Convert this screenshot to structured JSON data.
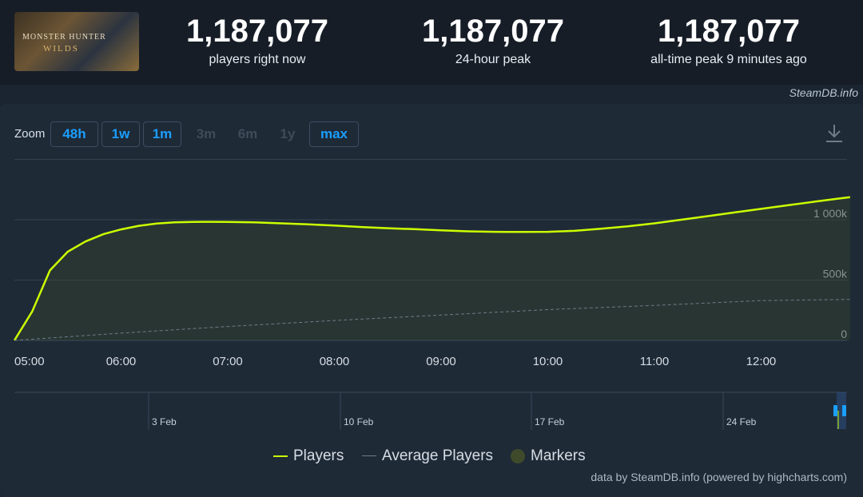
{
  "header": {
    "game_logo_text_line1": "MONSTER HUNTER",
    "game_logo_text_line2": "WILDS",
    "stats": [
      {
        "value": "1,187,077",
        "label": "players right now"
      },
      {
        "value": "1,187,077",
        "label": "24-hour peak"
      },
      {
        "value": "1,187,077",
        "label": "all-time peak 9 minutes ago"
      }
    ],
    "brand": "SteamDB.info"
  },
  "zoom": {
    "label": "Zoom",
    "buttons": [
      {
        "label": "48h",
        "enabled": true
      },
      {
        "label": "1w",
        "enabled": true
      },
      {
        "label": "1m",
        "enabled": true
      },
      {
        "label": "3m",
        "enabled": false
      },
      {
        "label": "6m",
        "enabled": false
      },
      {
        "label": "1y",
        "enabled": false
      },
      {
        "label": "max",
        "enabled": true
      }
    ]
  },
  "colors": {
    "players": "#ccff00",
    "average": "#6f7b88",
    "markers": "#3f4a2a",
    "grid": "#334152",
    "accent": "#1a9fff"
  },
  "chart_data": {
    "type": "line",
    "x_ticks": [
      "05:00",
      "06:00",
      "07:00",
      "08:00",
      "09:00",
      "10:00",
      "11:00",
      "12:00"
    ],
    "y_ticks": [
      "0",
      "500k",
      "1 000k"
    ],
    "ylim": [
      0,
      1500000
    ],
    "grid": true,
    "legend_position": "bottom",
    "series": [
      {
        "name": "Players",
        "x": [
          "05:00",
          "05:10",
          "05:20",
          "05:30",
          "05:40",
          "05:50",
          "06:00",
          "06:10",
          "06:20",
          "06:30",
          "06:40",
          "06:50",
          "07:00",
          "07:15",
          "07:30",
          "07:45",
          "08:00",
          "08:15",
          "08:30",
          "08:45",
          "09:00",
          "09:15",
          "09:30",
          "09:45",
          "10:00",
          "10:15",
          "10:30",
          "10:45",
          "11:00",
          "11:15",
          "11:30",
          "11:45",
          "12:00",
          "12:15",
          "12:30",
          "12:45",
          "12:50"
        ],
        "values": [
          0,
          240000,
          580000,
          735000,
          820000,
          880000,
          920000,
          950000,
          968000,
          978000,
          982000,
          983000,
          982000,
          978000,
          970000,
          962000,
          952000,
          940000,
          930000,
          922000,
          912000,
          904000,
          900000,
          899000,
          900000,
          908000,
          925000,
          946000,
          970000,
          1000000,
          1030000,
          1060000,
          1090000,
          1120000,
          1150000,
          1178000,
          1187077
        ]
      },
      {
        "name": "Average Players",
        "x": [
          "05:00",
          "06:00",
          "07:00",
          "08:00",
          "09:00",
          "10:00",
          "11:00",
          "12:00",
          "12:50"
        ],
        "values": [
          0,
          60000,
          115000,
          165000,
          210000,
          255000,
          290000,
          330000,
          340000
        ]
      }
    ],
    "navigator": {
      "labels": [
        "3 Feb",
        "10 Feb",
        "17 Feb",
        "24 Feb"
      ]
    }
  },
  "legend": [
    {
      "name": "Players"
    },
    {
      "name": "Average Players"
    },
    {
      "name": "Markers"
    }
  ],
  "footer": "data by SteamDB.info (powered by highcharts.com)"
}
